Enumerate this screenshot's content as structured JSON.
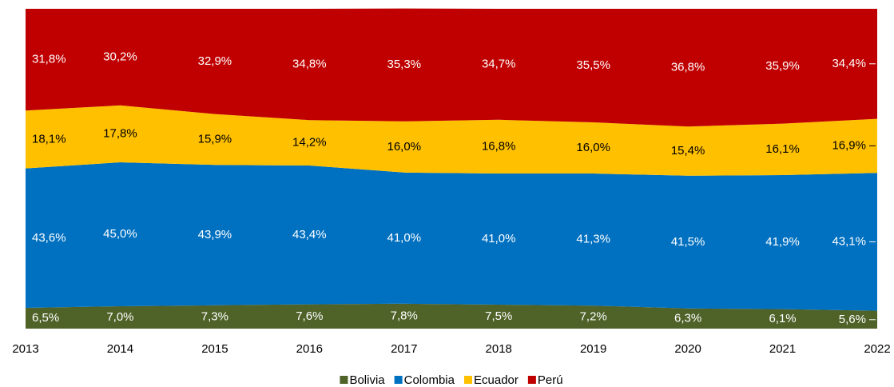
{
  "chart_data": {
    "type": "stacked-area",
    "x": [
      2013,
      2014,
      2015,
      2016,
      2017,
      2018,
      2019,
      2020,
      2021,
      2022
    ],
    "xlim": [
      2013,
      2022
    ],
    "xticks": [
      2013,
      2014,
      2015,
      2016,
      2017,
      2018,
      2019,
      2020,
      2021,
      2022
    ],
    "ylim": [
      0,
      100
    ],
    "legend": "bottom",
    "series": [
      {
        "name": "Bolivia",
        "color": "#4f6228",
        "label_color": "#ffffff",
        "values": [
          6.5,
          7.0,
          7.3,
          7.6,
          7.8,
          7.5,
          7.2,
          6.3,
          6.1,
          5.6
        ],
        "value_labels": [
          "6,5%",
          "7,0%",
          "7,3%",
          "7,6%",
          "7,8%",
          "7,5%",
          "7,2%",
          "6,3%",
          "6,1%",
          "5,6%"
        ]
      },
      {
        "name": "Colombia",
        "color": "#0070c0",
        "label_color": "#ffffff",
        "values": [
          43.6,
          45.0,
          43.9,
          43.4,
          41.0,
          41.0,
          41.3,
          41.5,
          41.9,
          43.1
        ],
        "value_labels": [
          "43,6%",
          "45,0%",
          "43,9%",
          "43,4%",
          "41,0%",
          "41,0%",
          "41,3%",
          "41,5%",
          "41,9%",
          "43,1%"
        ]
      },
      {
        "name": "Ecuador",
        "color": "#ffc000",
        "label_color": "#000000",
        "values": [
          18.1,
          17.8,
          15.9,
          14.2,
          16.0,
          16.8,
          16.0,
          15.4,
          16.1,
          16.9
        ],
        "value_labels": [
          "18,1%",
          "17,8%",
          "15,9%",
          "14,2%",
          "16,0%",
          "16,8%",
          "16,0%",
          "15,4%",
          "16,1%",
          "16,9%"
        ]
      },
      {
        "name": "Perú",
        "color": "#c00000",
        "label_color": "#ffffff",
        "values": [
          31.8,
          30.2,
          32.9,
          34.8,
          35.3,
          34.7,
          35.5,
          36.8,
          35.9,
          34.4
        ],
        "value_labels": [
          "31,8%",
          "30,2%",
          "32,9%",
          "34,8%",
          "35,3%",
          "34,7%",
          "35,5%",
          "36,8%",
          "35,9%",
          "34,4%"
        ]
      }
    ]
  }
}
